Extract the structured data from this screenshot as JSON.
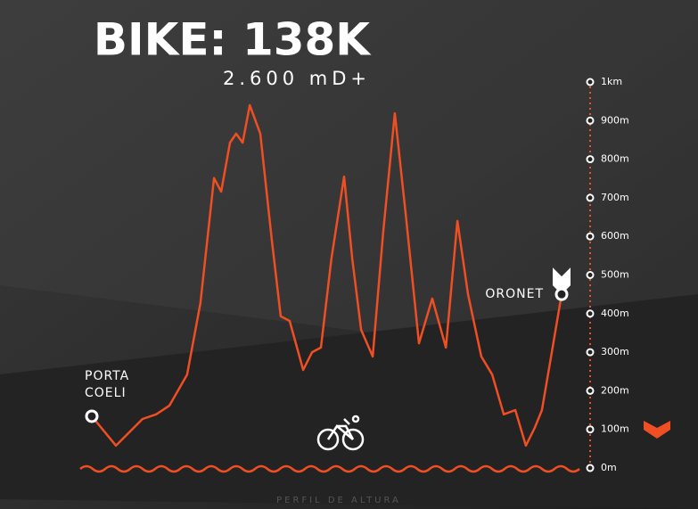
{
  "chart_data": {
    "type": "line",
    "title": "BIKE: 138K",
    "subtitle": "2.600 mD+",
    "footer": "PERFIL DE ALTURA",
    "start_label": [
      "PORTA",
      "COELI"
    ],
    "end_label": "ORONET",
    "color": "#f04e23",
    "xlim": [
      0,
      138
    ],
    "x": [
      0,
      7.1,
      14.9,
      18.9,
      22.8,
      28.0,
      31.9,
      35.9,
      38.0,
      40.6,
      42.4,
      44.3,
      46.4,
      49.5,
      52.9,
      55.5,
      58.1,
      62.1,
      64.7,
      67.3,
      70.4,
      74.1,
      76.5,
      79.1,
      82.5,
      85.6,
      89.0,
      92.2,
      96.1,
      100.0,
      104.0,
      107.4,
      110.5,
      114.4,
      117.6,
      121.0,
      124.4,
      127.5,
      130.1,
      132.2,
      134.9,
      138.0
    ],
    "values": [
      134,
      58,
      127,
      139,
      162,
      242,
      427,
      751,
      716,
      843,
      866,
      843,
      940,
      866,
      589,
      393,
      381,
      254,
      300,
      312,
      543,
      755,
      543,
      358,
      289,
      612,
      919,
      658,
      323,
      439,
      312,
      640,
      450,
      289,
      242,
      139,
      150,
      58,
      104,
      150,
      289,
      450
    ],
    "ylim": [
      0,
      1000
    ],
    "yticks": [
      {
        "value": 0,
        "label": "0m"
      },
      {
        "value": 100,
        "label": "100m"
      },
      {
        "value": 200,
        "label": "200m"
      },
      {
        "value": 300,
        "label": "300m"
      },
      {
        "value": 400,
        "label": "400m"
      },
      {
        "value": 500,
        "label": "500m"
      },
      {
        "value": 600,
        "label": "600m"
      },
      {
        "value": 700,
        "label": "700m"
      },
      {
        "value": 800,
        "label": "800m"
      },
      {
        "value": 900,
        "label": "900m"
      },
      {
        "value": 1000,
        "label": "1km"
      }
    ]
  }
}
